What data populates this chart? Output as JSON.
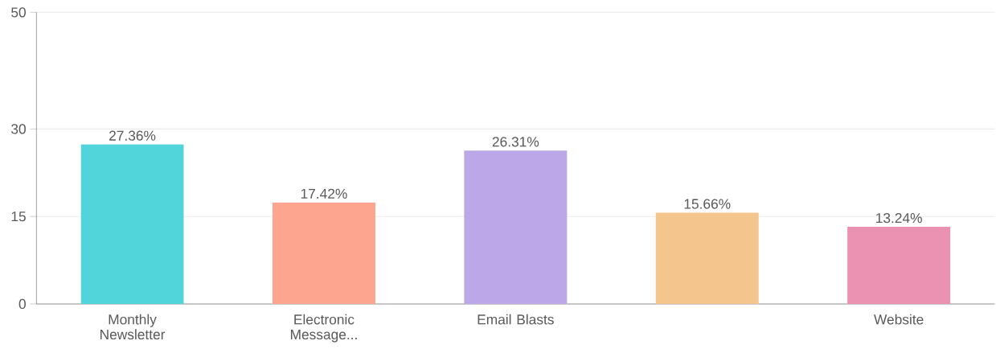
{
  "chart_data": {
    "type": "bar",
    "categories": [
      "Monthly Newsletter",
      "Electronic Message...",
      "Email Blasts",
      null,
      "Website"
    ],
    "values": [
      27.36,
      17.42,
      26.31,
      15.66,
      13.24
    ],
    "colors": [
      "#52d4db",
      "#fda58e",
      "#bca8e8",
      "#f4c68e",
      "#eb91b1"
    ],
    "value_labels": [
      "27.36%",
      "17.42%",
      "26.31%",
      "15.66%",
      "13.24%"
    ],
    "ylim": [
      0,
      50
    ],
    "yticks": [
      0,
      15,
      30,
      50
    ],
    "grid": "y"
  }
}
